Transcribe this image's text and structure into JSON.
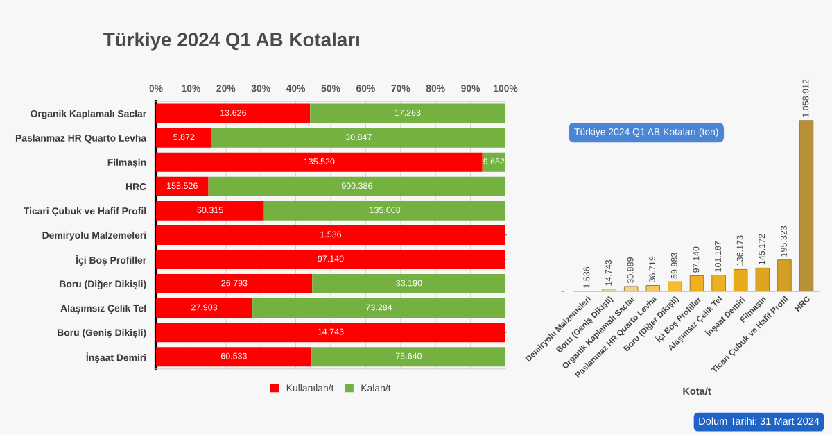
{
  "chart_data": [
    {
      "type": "bar",
      "orientation": "horizontal",
      "stacked": true,
      "title": "Türkiye 2024 Q1 AB Kotaları",
      "categories": [
        "Organik Kaplamalı Saclar",
        "Paslanmaz HR Quarto Levha",
        "Filmaşin",
        "HRC",
        "Ticari Çubuk ve Hafif Profil",
        "Demiryolu Malzemeleri",
        "İçi Boş Profiller",
        "Boru (Diğer Dikişli)",
        "Alaşımsız Çelik Tel",
        "Boru (Geniş Dikişli)",
        "İnşaat Demiri"
      ],
      "series": [
        {
          "name": "Kullanılan/t",
          "color": "#ff0000",
          "values": [
            44.1,
            16.0,
            93.4,
            15.0,
            30.9,
            100,
            100,
            44.7,
            27.6,
            100,
            44.5
          ]
        },
        {
          "name": "Kalan/t",
          "color": "#74b141",
          "values": [
            55.9,
            84.0,
            6.6,
            85.0,
            69.1,
            0,
            0,
            55.3,
            72.4,
            0,
            55.5
          ]
        }
      ],
      "xlim": [
        0,
        100
      ],
      "xticks": [
        {
          "value": 0,
          "label": "0%"
        },
        {
          "value": 10,
          "label": "10%"
        },
        {
          "value": 20,
          "label": "20%"
        },
        {
          "value": 30,
          "label": "30%"
        },
        {
          "value": 40,
          "label": "40%"
        },
        {
          "value": 50,
          "label": "50%"
        },
        {
          "value": 60,
          "label": "60%"
        },
        {
          "value": 70,
          "label": "70%"
        },
        {
          "value": 80,
          "label": "80%"
        },
        {
          "value": 90,
          "label": "90%"
        },
        {
          "value": 100,
          "label": "100%"
        }
      ],
      "grid": "x",
      "legend": "bottom",
      "annotations": [
        {
          "text": "13.626",
          "x": 22.1,
          "y": "Organik Kaplamalı Saclar"
        },
        {
          "text": "17.263",
          "x": 72.0,
          "y": "Organik Kaplamalı Saclar"
        },
        {
          "text": "5.872",
          "x": 8.0,
          "y": "Paslanmaz HR Quarto Levha"
        },
        {
          "text": "30.847",
          "x": 58.0,
          "y": "Paslanmaz HR Quarto Levha"
        },
        {
          "text": "135.520",
          "x": 46.7,
          "y": "Filmaşin"
        },
        {
          "text": "9.652",
          "x": 96.7,
          "y": "Filmaşin"
        },
        {
          "text": "158.526",
          "x": 7.5,
          "y": "HRC"
        },
        {
          "text": "900.386",
          "x": 57.5,
          "y": "HRC"
        },
        {
          "text": "60.315",
          "x": 15.5,
          "y": "Ticari Çubuk ve Hafif Profil"
        },
        {
          "text": "135.008",
          "x": 65.5,
          "y": "Ticari Çubuk ve Hafif Profil"
        },
        {
          "text": "1.536",
          "x": 50,
          "y": "Demiryolu Malzemeleri"
        },
        {
          "text": "-",
          "x": 100,
          "y": "Demiryolu Malzemeleri"
        },
        {
          "text": "97.140",
          "x": 50,
          "y": "İçi Boş Profiller"
        },
        {
          "text": "-",
          "x": 100,
          "y": "İçi Boş Profiller"
        },
        {
          "text": "26.793",
          "x": 22.4,
          "y": "Boru (Diğer Dikişli)"
        },
        {
          "text": "33.190",
          "x": 72.4,
          "y": "Boru (Diğer Dikişli)"
        },
        {
          "text": "27.903",
          "x": 13.8,
          "y": "Alaşımsız Çelik Tel"
        },
        {
          "text": "73.284",
          "x": 63.8,
          "y": "Alaşımsız Çelik Tel"
        },
        {
          "text": "14.743",
          "x": 50,
          "y": "Boru (Geniş Dikişli)"
        },
        {
          "text": "-",
          "x": 100,
          "y": "Boru (Geniş Dikişli)"
        },
        {
          "text": "60.533",
          "x": 22.3,
          "y": "İnşaat Demiri"
        },
        {
          "text": "75.640",
          "x": 72.3,
          "y": "İnşaat Demiri"
        },
        "Dolum Tarihi: 31 Mart 2024"
      ]
    },
    {
      "type": "bar",
      "title": "Türkiye 2024 Q1 AB Kotaları (ton)",
      "xlabel": "Kota/t",
      "categories": [
        "Demiryolu Malzemeleri",
        "Boru (Geniş Dikişli)",
        "Organik Kaplamalı Saclar",
        "Paslanmaz HR Quarto Levha",
        "Boru (Diğer Dikişli)",
        "İçi Boş Profiller",
        "Alaşımsız Çelik Tel",
        "İnşaat Demiri",
        "Filmaşin",
        "Ticari Çubuk ve Hafif Profil",
        "HRC"
      ],
      "values": [
        1536,
        14743,
        30889,
        36719,
        59983,
        97140,
        101187,
        136173,
        145172,
        195323,
        1058912
      ],
      "value_labels": [
        "1.536",
        "14.743",
        "30.889",
        "36.719",
        "59.983",
        "97.140",
        "101.187",
        "136.173",
        "145.172",
        "195.323",
        "1.058.912"
      ],
      "colors": [
        "#c9bba6",
        "#e8d2a8",
        "#f2d38a",
        "#f5c860",
        "#f5bc30",
        "#f0b020",
        "#eeb020",
        "#e8aa18",
        "#dca420",
        "#d4a024",
        "#b8903a"
      ],
      "tick_labels": "x",
      "annotations": [
        "-"
      ]
    }
  ]
}
